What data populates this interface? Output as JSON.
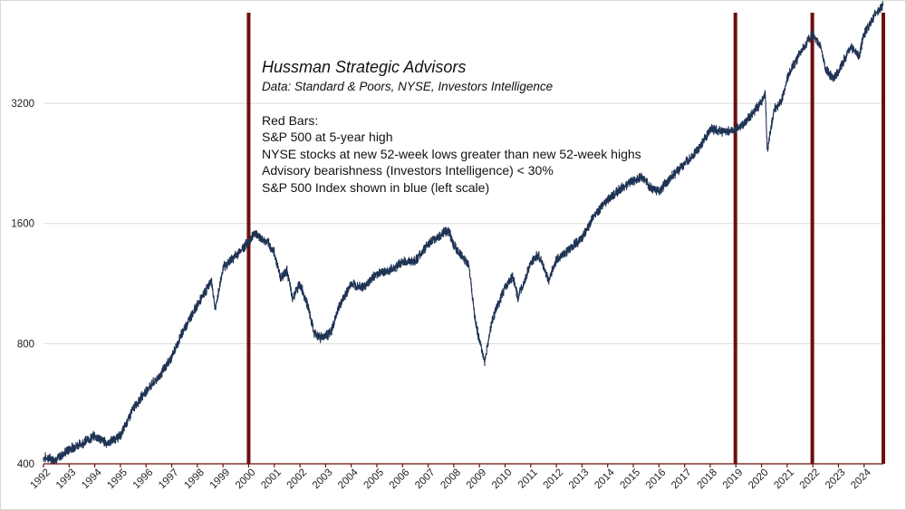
{
  "chart_data": {
    "type": "line",
    "title": "Hussman Strategic Advisors",
    "subtitle": "Data: Standard & Poors, NYSE, Investors Intelligence",
    "legend_heading": "Red Bars:",
    "legend_lines": [
      "S&P 500 at 5-year high",
      "NYSE stocks at new 52-week lows greater than new 52-week highs",
      "Advisory bearishness (Investors Intelligence) < 30%",
      "S&P 500 Index shown in blue (left scale)"
    ],
    "y_scale": "log",
    "ylim": [
      400,
      5400
    ],
    "yticks": [
      400,
      800,
      1600,
      3200
    ],
    "ytick_labels": [
      "400",
      "800",
      "1600",
      "3200"
    ],
    "xlim": [
      1992.0,
      2024.75
    ],
    "xtick_labels": [
      "1992",
      "1993",
      "1994",
      "1995",
      "1996",
      "1997",
      "1998",
      "1999",
      "2000",
      "2001",
      "2002",
      "2003",
      "2004",
      "2005",
      "2006",
      "2007",
      "2008",
      "2009",
      "2010",
      "2011",
      "2012",
      "2013",
      "2014",
      "2015",
      "2016",
      "2017",
      "2018",
      "2019",
      "2020",
      "2021",
      "2022",
      "2023",
      "2024"
    ],
    "series": [
      {
        "name": "S&P 500 Index",
        "color": "#1f3354",
        "x": [
          1992.0,
          1992.5,
          1993.0,
          1993.5,
          1994.0,
          1994.5,
          1995.0,
          1995.5,
          1996.0,
          1996.5,
          1997.0,
          1997.4,
          1997.8,
          1998.2,
          1998.55,
          1998.7,
          1999.0,
          1999.5,
          2000.0,
          2000.25,
          2000.5,
          2000.75,
          2001.0,
          2001.25,
          2001.5,
          2001.7,
          2002.0,
          2002.3,
          2002.55,
          2002.8,
          2003.2,
          2003.5,
          2004.0,
          2004.5,
          2005.0,
          2005.5,
          2006.0,
          2006.5,
          2007.0,
          2007.5,
          2007.8,
          2008.0,
          2008.3,
          2008.6,
          2008.85,
          2009.2,
          2009.5,
          2010.0,
          2010.3,
          2010.5,
          2011.0,
          2011.3,
          2011.7,
          2012.0,
          2012.5,
          2013.0,
          2013.5,
          2014.0,
          2014.5,
          2015.0,
          2015.4,
          2015.65,
          2016.0,
          2016.5,
          2017.0,
          2017.5,
          2018.0,
          2018.5,
          2018.98,
          2019.3,
          2019.6,
          2020.0,
          2020.15,
          2020.22,
          2020.5,
          2020.8,
          2021.0,
          2021.5,
          2021.98,
          2022.3,
          2022.5,
          2022.8,
          2023.0,
          2023.5,
          2023.8,
          2024.0,
          2024.3,
          2024.6,
          2024.75
        ],
        "values": [
          415,
          410,
          435,
          450,
          470,
          450,
          470,
          550,
          610,
          660,
          740,
          850,
          950,
          1050,
          1150,
          970,
          1240,
          1330,
          1440,
          1520,
          1460,
          1430,
          1350,
          1170,
          1220,
          1040,
          1130,
          1000,
          850,
          830,
          850,
          980,
          1130,
          1110,
          1200,
          1220,
          1280,
          1290,
          1420,
          1500,
          1540,
          1410,
          1330,
          1250,
          900,
          720,
          920,
          1110,
          1180,
          1040,
          1270,
          1340,
          1150,
          1300,
          1380,
          1470,
          1680,
          1840,
          1950,
          2050,
          2090,
          1960,
          1930,
          2100,
          2260,
          2430,
          2750,
          2720,
          2740,
          2840,
          2990,
          3230,
          3380,
          2430,
          3100,
          3270,
          3720,
          4280,
          4780,
          4450,
          3900,
          3700,
          3850,
          4450,
          4200,
          4770,
          5200,
          5500,
          5650
        ]
      }
    ],
    "red_bars": [
      {
        "x": 2000.0,
        "label": "2000"
      },
      {
        "x": 2018.98,
        "label": "2019"
      },
      {
        "x": 2021.98,
        "label": "2022"
      },
      {
        "x": 2024.75,
        "label": "2024"
      }
    ],
    "colors": {
      "line": "#1f3354",
      "bars": "#6b0f0f",
      "grid": "#d9d9d9"
    }
  }
}
